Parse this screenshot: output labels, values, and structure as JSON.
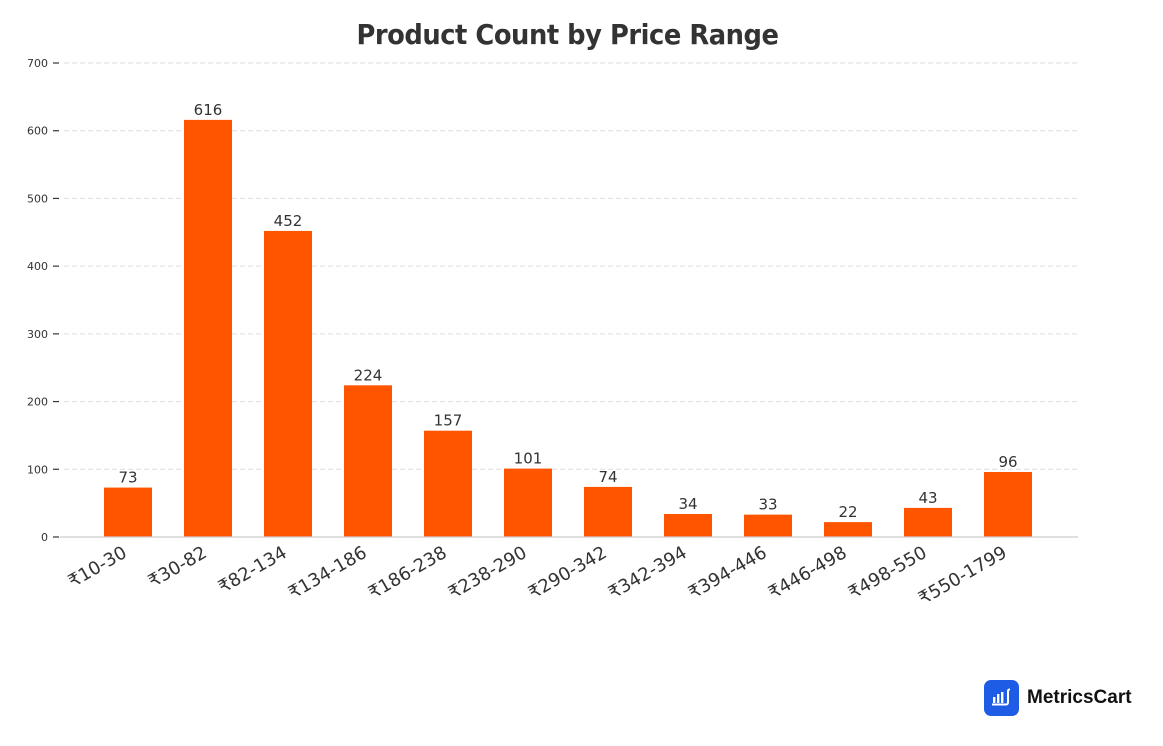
{
  "chart_data": {
    "type": "bar",
    "title": "Product Count by Price Range",
    "xlabel": "",
    "ylabel": "",
    "categories": [
      "₹10-30",
      "₹30-82",
      "₹82-134",
      "₹134-186",
      "₹186-238",
      "₹238-290",
      "₹290-342",
      "₹342-394",
      "₹394-446",
      "₹446-498",
      "₹498-550",
      "₹550-1799"
    ],
    "values": [
      73,
      616,
      452,
      224,
      157,
      101,
      74,
      34,
      33,
      22,
      43,
      96
    ],
    "ylim": [
      0,
      700
    ],
    "yticks": [
      0,
      100,
      200,
      300,
      400,
      500,
      600,
      700
    ],
    "grid": true,
    "bar_color": "#ff5500",
    "data_labels": true,
    "x_tick_rotation": -30
  },
  "brand": {
    "name": "MetricsCart",
    "icon": "bar-chart-cart-icon",
    "color": "#1f5ce6"
  }
}
